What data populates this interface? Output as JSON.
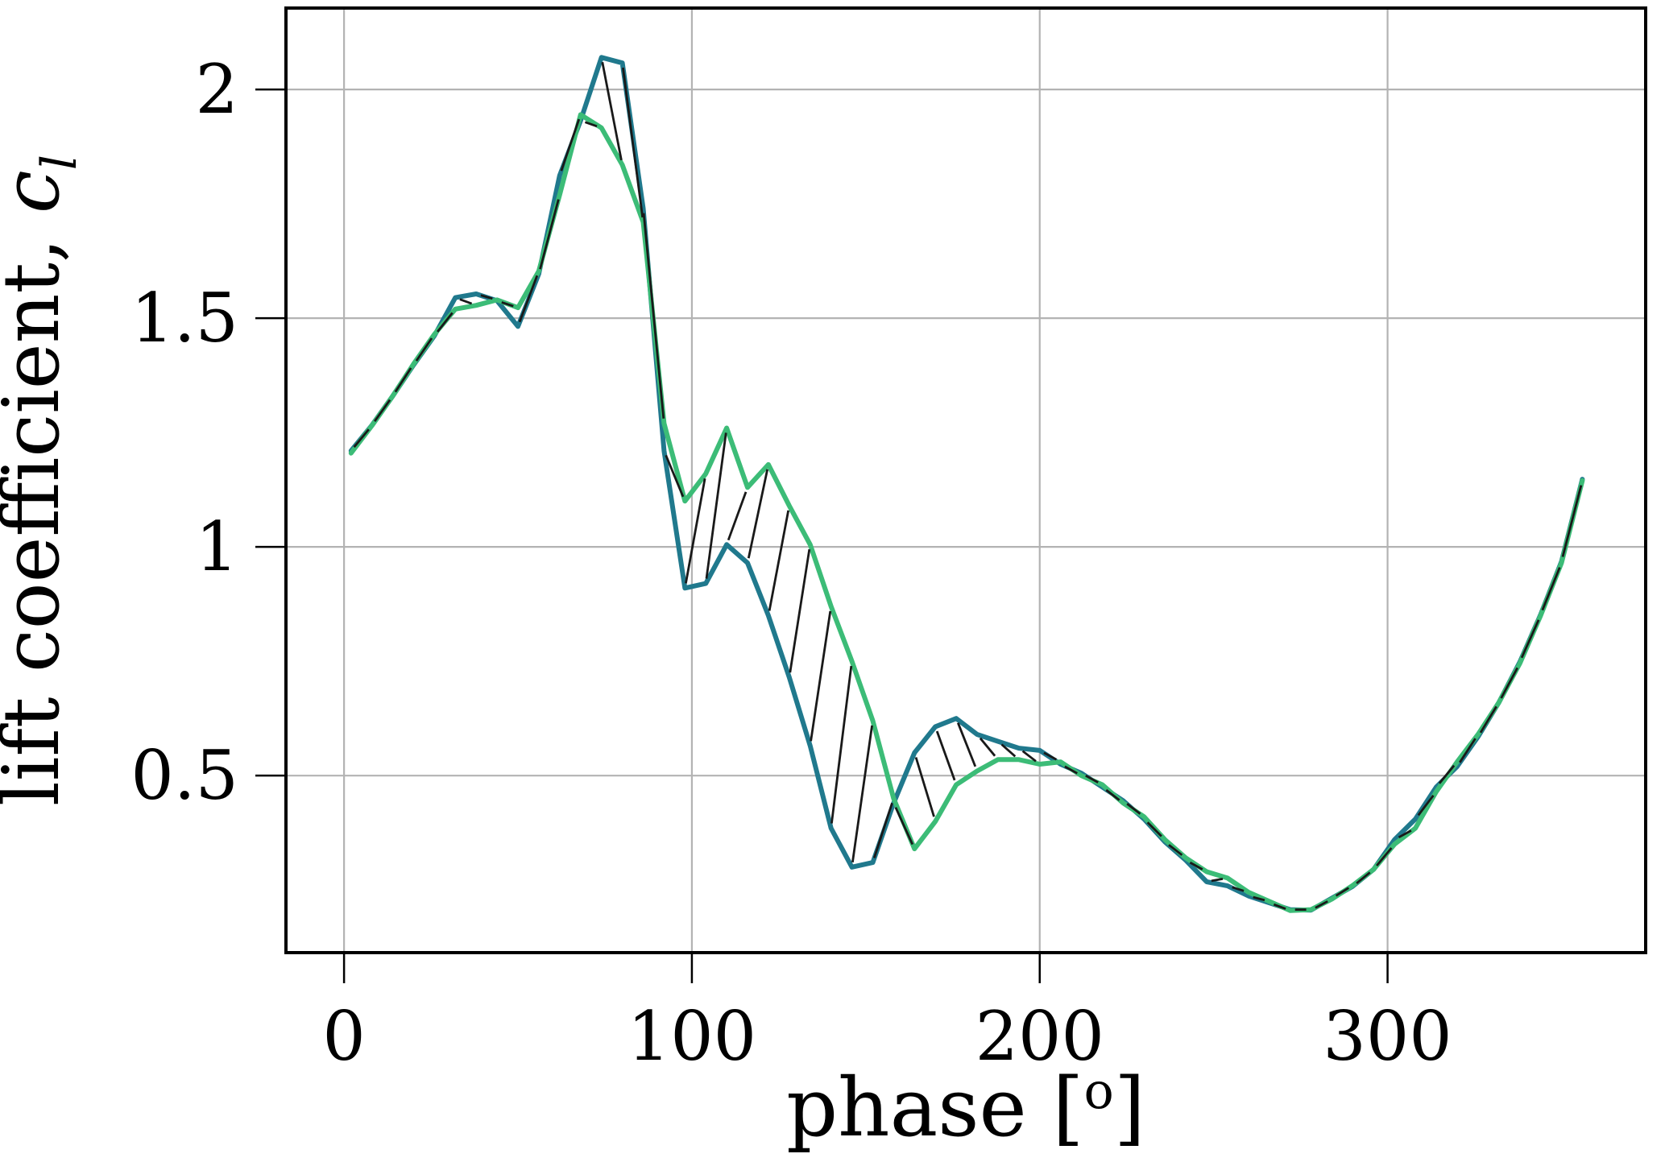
{
  "chart_data": {
    "type": "line",
    "title": "",
    "xlabel": "phase [°]",
    "xlabel_parts": {
      "prefix": "phase [",
      "superscript": "o",
      "suffix": "]"
    },
    "ylabel": "lift coefficient, c_l",
    "ylabel_parts": {
      "prefix": "lift coefficient, ",
      "symbol": "c",
      "subscript": "l"
    },
    "xlim": [
      -16.7,
      374.2
    ],
    "ylim": [
      0.113,
      2.178
    ],
    "grid": true,
    "legend_position": "none",
    "xticks": {
      "values": [
        0,
        100,
        200,
        300
      ],
      "labels": [
        "0",
        "100",
        "200",
        "300"
      ]
    },
    "yticks": {
      "values": [
        0.5,
        1.0,
        1.5,
        2.0
      ],
      "labels": [
        "0.5",
        "1",
        "1.5",
        "2"
      ]
    },
    "x": [
      2,
      8,
      14,
      20,
      26,
      32,
      38,
      44,
      50,
      56,
      62,
      68,
      74,
      80,
      86,
      92,
      98,
      104,
      110,
      116,
      122,
      128,
      134,
      140,
      146,
      152,
      158,
      164,
      170,
      176,
      182,
      188,
      194,
      200,
      206,
      212,
      218,
      224,
      230,
      236,
      242,
      248,
      254,
      260,
      266,
      272,
      278,
      284,
      290,
      296,
      302,
      308,
      314,
      320,
      326,
      332,
      338,
      344,
      350,
      356
    ],
    "series": [
      {
        "name": "teal-curve",
        "color": "#20798d",
        "values": [
          1.21,
          1.266,
          1.33,
          1.398,
          1.462,
          1.545,
          1.553,
          1.538,
          1.482,
          1.597,
          1.812,
          1.932,
          2.07,
          2.058,
          1.74,
          1.21,
          0.91,
          0.92,
          1.005,
          0.965,
          0.85,
          0.715,
          0.565,
          0.385,
          0.3,
          0.31,
          0.44,
          0.55,
          0.607,
          0.625,
          0.59,
          0.575,
          0.56,
          0.555,
          0.525,
          0.505,
          0.475,
          0.445,
          0.405,
          0.355,
          0.315,
          0.268,
          0.259,
          0.237,
          0.222,
          0.207,
          0.206,
          0.232,
          0.258,
          0.295,
          0.36,
          0.405,
          0.475,
          0.52,
          0.585,
          0.66,
          0.748,
          0.852,
          0.968,
          1.148
        ]
      },
      {
        "name": "green-curve",
        "color": "#3cbc77",
        "values": [
          1.205,
          1.265,
          1.33,
          1.4,
          1.465,
          1.52,
          1.528,
          1.54,
          1.523,
          1.603,
          1.77,
          1.945,
          1.916,
          1.835,
          1.71,
          1.27,
          1.1,
          1.16,
          1.26,
          1.13,
          1.18,
          1.09,
          1.005,
          0.87,
          0.75,
          0.62,
          0.45,
          0.34,
          0.4,
          0.48,
          0.51,
          0.535,
          0.535,
          0.525,
          0.53,
          0.5,
          0.48,
          0.44,
          0.41,
          0.36,
          0.32,
          0.29,
          0.276,
          0.245,
          0.225,
          0.205,
          0.207,
          0.23,
          0.26,
          0.295,
          0.35,
          0.385,
          0.465,
          0.53,
          0.59,
          0.66,
          0.745,
          0.85,
          0.965,
          1.145
        ]
      }
    ],
    "hatch": {
      "description": "thin black segments joining teal sample i to green sample i+1, marking the local difference between the two curves",
      "color": "#191919"
    },
    "colors": {
      "grid": "#b3b3b3",
      "spines": "#000000",
      "background": "#ffffff",
      "tick_labels": "#000000"
    }
  }
}
